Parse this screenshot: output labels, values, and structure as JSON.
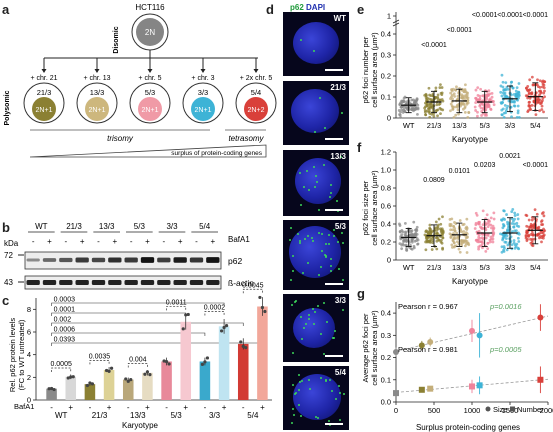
{
  "panels": {
    "a": "a",
    "b": "b",
    "c": "c",
    "d": "d",
    "e": "e",
    "f": "f",
    "g": "g"
  },
  "panel_a": {
    "cell_line": "HCT116",
    "disomic_label": "Disomic",
    "parent_label": "2N",
    "polysomic_label": "Polysomic",
    "trisomy_label": "trisomy",
    "tetrasomy_label": "tetrasomy",
    "surplus_label": "surplus of protein-coding genes",
    "lines": [
      {
        "gain": "+ chr. 21",
        "name": "21/3",
        "ploidy": "2N+1",
        "color": "#8b8033"
      },
      {
        "gain": "+ chr. 13",
        "name": "13/3",
        "ploidy": "2N+1",
        "color": "#cdb77d"
      },
      {
        "gain": "+ chr. 5",
        "name": "5/3",
        "ploidy": "2N+1",
        "color": "#f09aa6"
      },
      {
        "gain": "+ chr. 3",
        "name": "3/3",
        "ploidy": "2N+1",
        "color": "#3db3d6"
      },
      {
        "gain": "+ 2x chr. 5",
        "name": "5/4",
        "ploidy": "2N+2",
        "color": "#d9403a"
      }
    ]
  },
  "panel_b": {
    "kda_label": "kDa",
    "bafa1_label": "BafA1",
    "lanes": [
      "WT",
      "21/3",
      "13/3",
      "5/3",
      "3/3",
      "5/4"
    ],
    "treat_signs": [
      "-",
      "+",
      "-",
      "+",
      "-",
      "+",
      "-",
      "+",
      "-",
      "+",
      "-",
      "+"
    ],
    "marker_72": "72",
    "marker_43": "43",
    "protein_1": "p62",
    "protein_2": "ß-actin",
    "p62_band_intensity": [
      0.25,
      0.45,
      0.55,
      0.72,
      0.65,
      0.78,
      0.72,
      0.95,
      0.7,
      0.9,
      0.75,
      0.95
    ]
  },
  "panel_c": {
    "ylabel_1": "Rel. p62 protein levels",
    "ylabel_2": "(FC to WT untreated)",
    "xlabel": "Karyotype",
    "bafa1_label": "BafA1",
    "treat_signs": [
      "-",
      "+",
      "-",
      "+",
      "-",
      "+",
      "-",
      "+",
      "-",
      "+",
      "-",
      "+"
    ],
    "groups": [
      "WT",
      "21/3",
      "13/3",
      "5/3",
      "3/3",
      "5/4"
    ],
    "yticks": [
      "0",
      "2",
      "4",
      "6",
      "8"
    ],
    "pvals_pairs": [
      "0.0005",
      "0.0035",
      "0.004",
      "0.0011",
      "0.0002",
      "0.0045"
    ],
    "pvals_vs_wt": [
      "0.0003",
      "0.0001",
      "0.002",
      "0.0006",
      "0.0393"
    ]
  },
  "panel_d": {
    "stain_1": "p62",
    "stain_2": "DAPI",
    "labels": [
      "WT",
      "21/3",
      "13/3",
      "5/3",
      "3/3",
      "5/4"
    ]
  },
  "panel_e": {
    "ylabel_1": "p62 foci number per",
    "ylabel_2": "cell surface area (µm²)",
    "xlabel": "Karyotype",
    "yticks": [
      "0",
      "0.1",
      "0.2",
      "0.3",
      "0.4",
      "1"
    ],
    "groups": [
      "WT",
      "21/3",
      "13/3",
      "5/3",
      "3/3",
      "5/4"
    ],
    "pvals": [
      "<0.0001",
      "<0.0001",
      "<0.0001",
      "<0.0001",
      "<0.0001"
    ]
  },
  "panel_f": {
    "ylabel_1": "p62 foci size per",
    "ylabel_2": "cell surface area (µm²)",
    "xlabel": "Karyotype",
    "yticks": [
      "0",
      "0.2",
      "0.4",
      "0.6",
      "0.8",
      "1.0",
      "1.2"
    ],
    "groups": [
      "WT",
      "21/3",
      "13/3",
      "5/3",
      "3/3",
      "5/4"
    ],
    "pvals": [
      "0.0809",
      "0.0101",
      "0.0203",
      "0.0021",
      "<0.0001"
    ]
  },
  "panel_g": {
    "ylabel_1": "Average p62 foci per",
    "ylabel_2": "cell surface area (µm²)",
    "xlabel": "Surplus protein-coding genes",
    "xticks": [
      "0",
      "500",
      "1000",
      "1500",
      "2000"
    ],
    "yticks": [
      "0.0",
      "0.1",
      "0.2",
      "0.3",
      "0.4"
    ],
    "pearson_size": "Pearson r = 0.967",
    "p_size": "p=0.0016",
    "pearson_number": "Pearson r = 0.981",
    "p_number": "p=0.0005",
    "legend_size": "Size",
    "legend_number": "Number"
  },
  "chart_data": [
    {
      "panel": "c",
      "type": "bar",
      "categories": [
        "WT -",
        "WT +",
        "21/3 -",
        "21/3 +",
        "13/3 -",
        "13/3 +",
        "5/3 -",
        "5/3 +",
        "3/3 -",
        "3/3 +",
        "5/4 -",
        "5/4 +"
      ],
      "values": [
        1.0,
        2.05,
        1.4,
        2.65,
        1.8,
        2.4,
        3.4,
        6.9,
        3.4,
        6.5,
        4.95,
        8.25
      ],
      "colors": [
        "#8a8a8a",
        "#d8d8d8",
        "#8b8033",
        "#ddd296",
        "#b9a77a",
        "#e6dcc2",
        "#e8899a",
        "#f6c8d0",
        "#3aa9cc",
        "#bfe4f1",
        "#d23a34",
        "#f2a79a"
      ],
      "ylim": [
        0,
        9
      ]
    },
    {
      "panel": "e",
      "type": "scatter",
      "categories": [
        "WT",
        "21/3",
        "13/3",
        "5/3",
        "3/3",
        "5/4"
      ],
      "means": [
        0.06,
        0.075,
        0.08,
        0.075,
        0.09,
        0.1
      ],
      "sd": [
        0.035,
        0.05,
        0.055,
        0.05,
        0.06,
        0.065
      ],
      "colors": [
        "#8a8a8a",
        "#8b8033",
        "#c4ae7a",
        "#f0829a",
        "#3db3d6",
        "#d9403a"
      ],
      "ylim": [
        0,
        0.45
      ]
    },
    {
      "panel": "f",
      "type": "scatter",
      "categories": [
        "WT",
        "21/3",
        "13/3",
        "5/3",
        "3/3",
        "5/4"
      ],
      "means": [
        0.25,
        0.27,
        0.28,
        0.3,
        0.3,
        0.33
      ],
      "sd": [
        0.1,
        0.12,
        0.13,
        0.15,
        0.17,
        0.15
      ],
      "colors": [
        "#8a8a8a",
        "#8b8033",
        "#c4ae7a",
        "#f0829a",
        "#3db3d6",
        "#d9403a"
      ],
      "ylim": [
        0,
        1.2
      ]
    },
    {
      "panel": "g",
      "type": "scatter",
      "xlim": [
        0,
        2000
      ],
      "ylim": [
        0,
        0.45
      ],
      "series": [
        {
          "name": "Size",
          "x": [
            0,
            340,
            450,
            1000,
            1100,
            1900
          ],
          "y": [
            0.225,
            0.255,
            0.27,
            0.32,
            0.3,
            0.38
          ],
          "err": [
            0.02,
            0.02,
            0.02,
            0.05,
            0.1,
            0.06
          ]
        },
        {
          "name": "Number",
          "x": [
            0,
            340,
            450,
            1000,
            1100,
            1900
          ],
          "y": [
            0.04,
            0.055,
            0.06,
            0.07,
            0.075,
            0.1
          ],
          "err": [
            0.01,
            0.01,
            0.01,
            0.03,
            0.04,
            0.06
          ]
        }
      ],
      "colors": [
        "#8a8a8a",
        "#8b8033",
        "#c4ae7a",
        "#f0829a",
        "#3db3d6",
        "#d9403a"
      ]
    }
  ]
}
